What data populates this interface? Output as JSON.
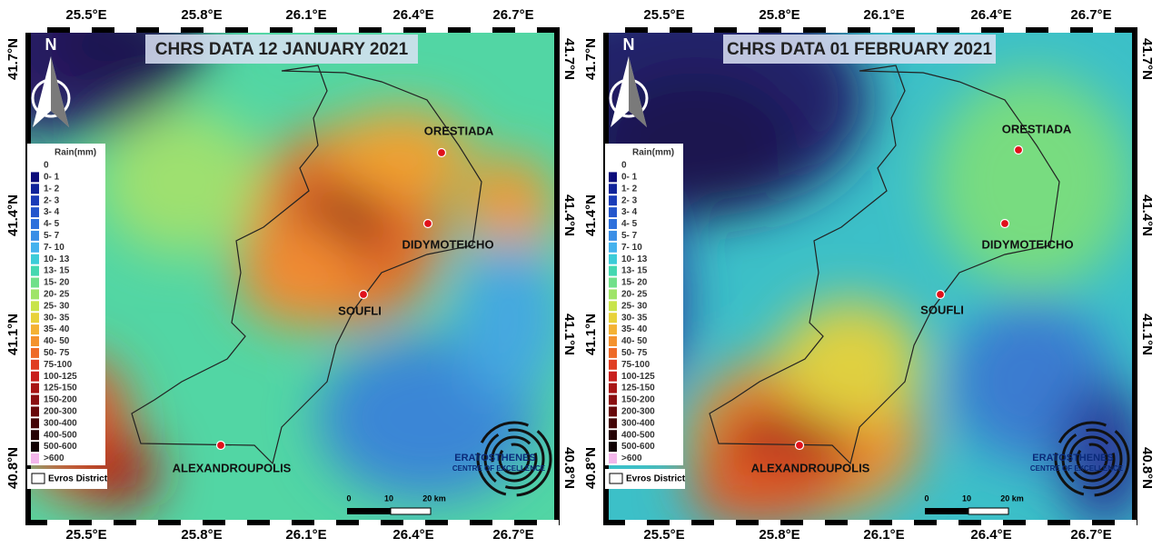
{
  "maps": [
    {
      "title": "CHRS DATA 12 JANUARY 2021"
    },
    {
      "title": "CHRS DATA 01 FEBRUARY 2021"
    }
  ],
  "lon_ticks": [
    "25.5°E",
    "25.8°E",
    "26.1°E",
    "26.4°E",
    "26.7°E"
  ],
  "lat_ticks": [
    "41.7°N",
    "41.4°N",
    "41.1°N",
    "40.8°N"
  ],
  "north": "N",
  "legend": {
    "title": "Rain(mm)",
    "items": [
      "0",
      "0- 1",
      "1- 2",
      "2- 3",
      "3- 4",
      "4- 5",
      "5- 7",
      "7- 10",
      "10- 13",
      "13- 15",
      "15- 20",
      "20- 25",
      "25- 30",
      "30- 35",
      "35- 40",
      "40- 50",
      "50- 75",
      "75-100",
      "100-125",
      "125-150",
      "150-200",
      "200-300",
      "300-400",
      "400-500",
      "500-600",
      ">600"
    ],
    "colors": [
      "#ffffff",
      "#0c0c7a",
      "#10239a",
      "#1a3cb8",
      "#2456cc",
      "#2e70dc",
      "#3a8ee6",
      "#44b2ee",
      "#3cccd8",
      "#44d8b0",
      "#70e08a",
      "#9ee468",
      "#c8e44a",
      "#e8d23a",
      "#f4b234",
      "#f4922e",
      "#ee6a28",
      "#e03e22",
      "#c81e1c",
      "#a81414",
      "#8a0e10",
      "#68080a",
      "#440406",
      "#260204",
      "#100002",
      "#f2b6ea"
    ]
  },
  "district": "Evros District",
  "places": [
    "ORESTIADA",
    "DIDYMOTEICHO",
    "SOUFLI",
    "ALEXANDROUPOLIS"
  ],
  "scale_labels": [
    "0",
    "10",
    "20 km"
  ],
  "logo": [
    "ERATOSTHENES",
    "CENTRE OF EXCELLENCE"
  ]
}
